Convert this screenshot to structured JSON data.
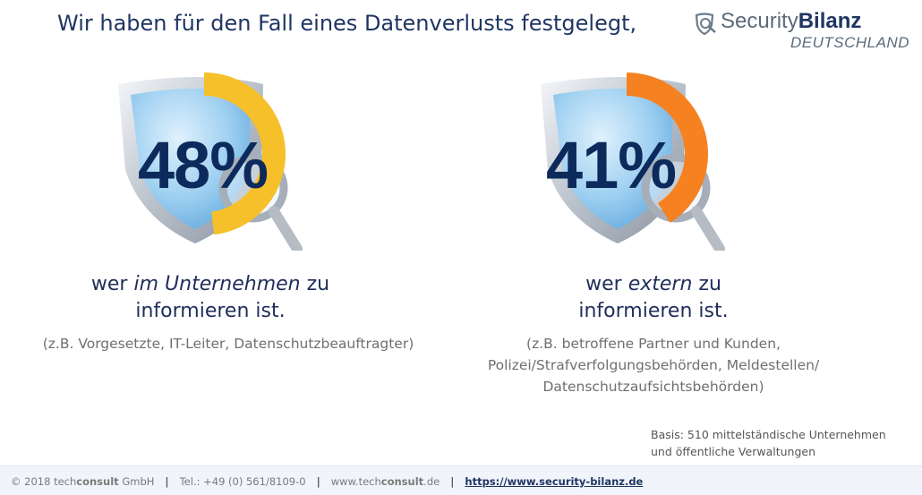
{
  "title": "Wir haben für den Fall eines Datenverlusts festgelegt,",
  "logo": {
    "part1": "Security",
    "part2": "Bilanz",
    "sub": "DEUTSCHLAND"
  },
  "chart_data": {
    "type": "pie",
    "title": "Wir haben für den Fall eines Datenverlusts festgelegt,",
    "values": [
      48,
      41
    ],
    "labels": [
      "48%",
      "41%"
    ],
    "colors": [
      "#f6c02a",
      "#f68120"
    ],
    "items": [
      {
        "label": "48%",
        "value": 48,
        "color": "#f6c02a",
        "caption_pre": "wer ",
        "caption_em": "im Unternehmen",
        "caption_post": " zu",
        "caption_line2": "informieren ist.",
        "detail": [
          "(z.B. Vorgesetzte, IT-Leiter, Datenschutzbeauftragter)"
        ]
      },
      {
        "label": "41%",
        "value": 41,
        "color": "#f68120",
        "caption_pre": "wer ",
        "caption_em": "extern",
        "caption_post": " zu",
        "caption_line2": "informieren ist.",
        "detail": [
          "(z.B. betroffene Partner und Kunden,",
          "Polizei/Strafverfolgungsbehörden,  Meldestellen/",
          "Datenschutzaufsichtsbehörden)"
        ]
      }
    ]
  },
  "basis": {
    "line1": "Basis: 510 mittelständische Unternehmen",
    "line2": "und öffentliche Verwaltungen"
  },
  "footer": {
    "copyright_pre": "© 2018 tech",
    "copyright_bold": "consult",
    "copyright_post": " GmbH",
    "phone": "Tel.: +49 (0) 561/8109-0",
    "web_pre": "www.tech",
    "web_bold": "consult",
    "web_post": ".de",
    "link": "https://www.security-bilanz.de"
  }
}
